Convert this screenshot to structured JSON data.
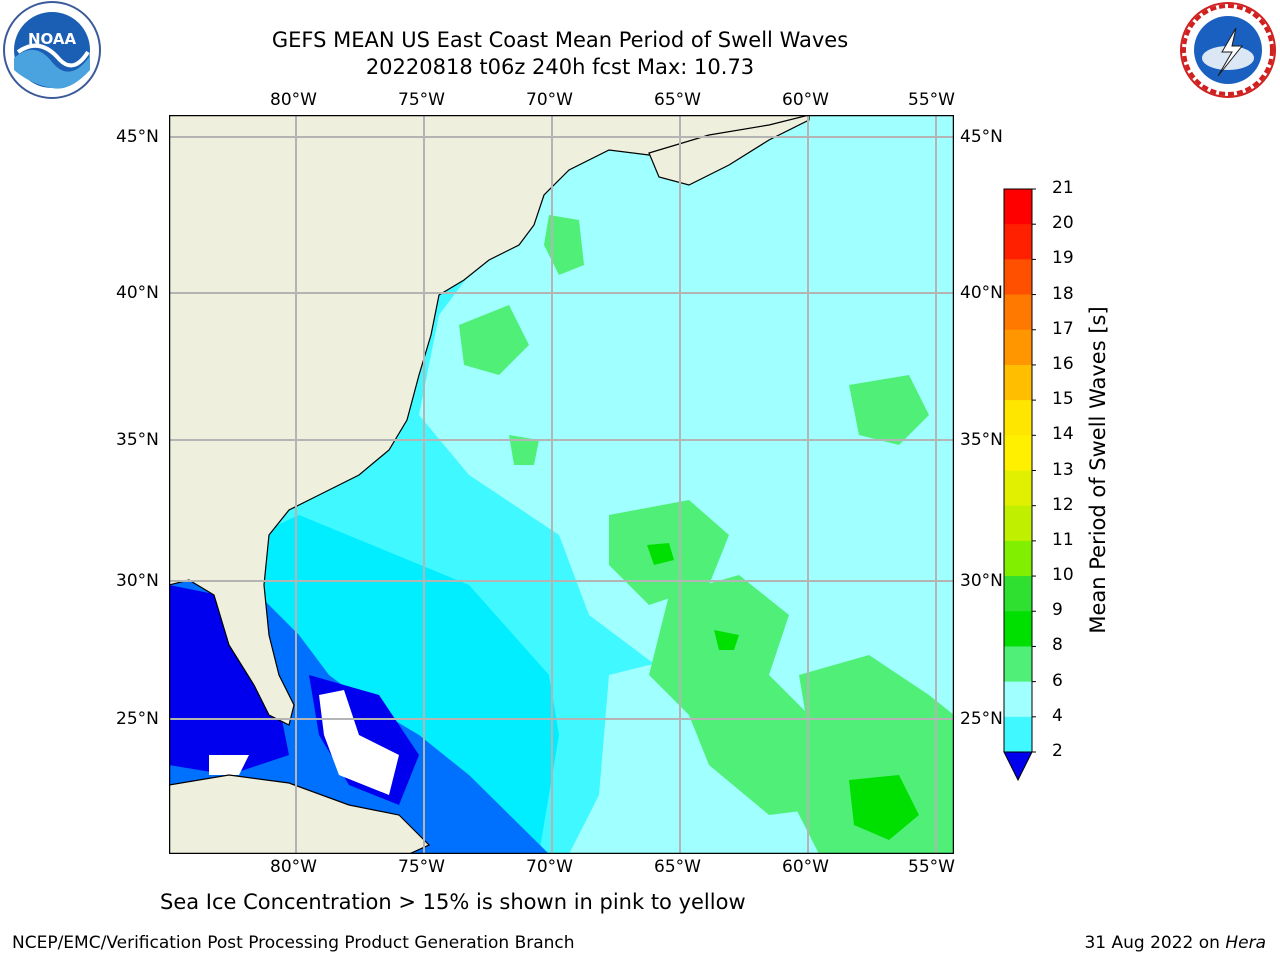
{
  "title": {
    "line1": "GEFS MEAN US East Coast Mean Period of Swell Waves",
    "line2": "20220818 t06z 240h fcst   Max: 10.73"
  },
  "map": {
    "lon_labels": [
      "80°W",
      "75°W",
      "70°W",
      "65°W",
      "60°W",
      "55°W"
    ],
    "lat_labels": [
      "45°N",
      "40°N",
      "35°N",
      "30°N",
      "25°N"
    ],
    "colors": {
      "land": "#efefde",
      "grid": "#b4b4b4"
    }
  },
  "colorbar": {
    "label": "Mean Period of Swell Waves [s]",
    "ticks": [
      "21",
      "20",
      "19",
      "18",
      "17",
      "16",
      "15",
      "14",
      "13",
      "12",
      "11",
      "10",
      "9",
      "8",
      "6",
      "4",
      "2"
    ],
    "colors": [
      "#ff0000",
      "#ff2000",
      "#ff5000",
      "#ff7800",
      "#ff9600",
      "#ffbe00",
      "#ffe600",
      "#fff000",
      "#e0f000",
      "#c0f000",
      "#80f000",
      "#30e030",
      "#00e000",
      "#50f078",
      "#a0ffff",
      "#40f8ff",
      "#00eeff",
      "#0070ff",
      "#0000ee"
    ]
  },
  "footnote": "Sea Ice Concentration > 15% is shown in pink to yellow",
  "credit": "NCEP/EMC/Verification Post Processing Product Generation Branch",
  "datestamp": {
    "date": "31 Aug 2022 on ",
    "host": "Hera"
  },
  "logos": {
    "left": "NOAA",
    "right": "NATIONAL WEATHER SERVICE"
  }
}
